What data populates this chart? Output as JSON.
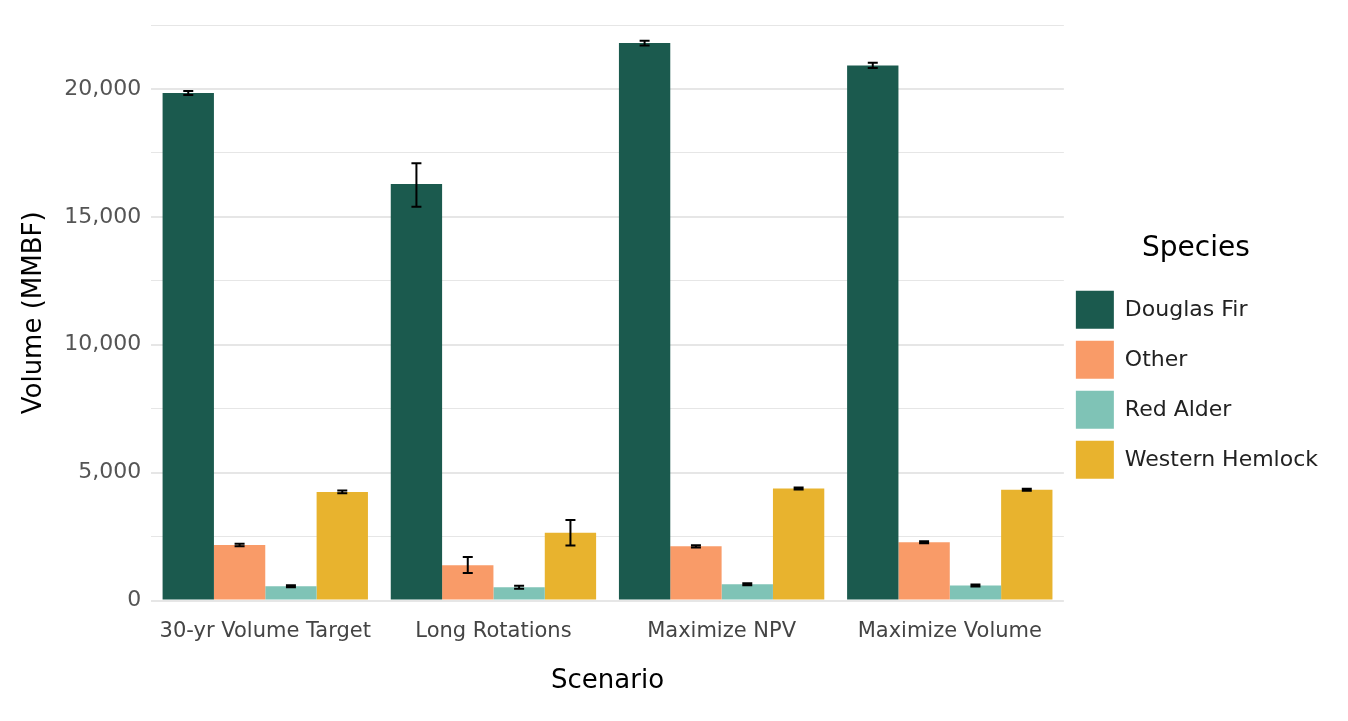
{
  "chart_data": {
    "type": "bar",
    "xlabel": "Scenario",
    "ylabel": "Volume (MMBF)",
    "legend_title": "Species",
    "legend": "right",
    "grid": "y",
    "categories": [
      "30-yr Volume Target",
      "Long Rotations",
      "Maximize NPV",
      "Maximize Volume"
    ],
    "ylim": [
      0,
      22500
    ],
    "yticks": [
      0,
      {
        "value": 2500,
        "label": null
      },
      {
        "value": 5000,
        "label": "5,000"
      },
      {
        "value": 7500,
        "label": null
      },
      {
        "value": 10000,
        "label": "10,000"
      },
      {
        "value": 12500,
        "label": null
      },
      {
        "value": 15000,
        "label": "15,000"
      },
      {
        "value": 17500,
        "label": null
      },
      {
        "value": 20000,
        "label": "20,000"
      },
      {
        "value": 22500,
        "label": null
      }
    ],
    "series": [
      {
        "name": "Douglas Fir",
        "color": "#1b5a4e",
        "values": [
          19840,
          16280,
          21800,
          20920
        ],
        "errors": [
          [
            19760,
            19920
          ],
          [
            15400,
            17100
          ],
          [
            21700,
            21880
          ],
          [
            20820,
            21020
          ]
        ]
      },
      {
        "name": "Other",
        "color": "#f99b68",
        "values": [
          2170,
          1380,
          2120,
          2280
        ],
        "errors": [
          [
            2120,
            2220
          ],
          [
            1080,
            1700
          ],
          [
            2080,
            2160
          ],
          [
            2240,
            2320
          ]
        ]
      },
      {
        "name": "Red Alder",
        "color": "#7fc3b6",
        "values": [
          560,
          520,
          640,
          590
        ],
        "errors": [
          [
            520,
            600
          ],
          [
            460,
            580
          ],
          [
            600,
            680
          ],
          [
            550,
            630
          ]
        ]
      },
      {
        "name": "Western Hemlock",
        "color": "#e8b32e",
        "values": [
          4250,
          2650,
          4380,
          4330
        ],
        "errors": [
          [
            4200,
            4300
          ],
          [
            2150,
            3150
          ],
          [
            4340,
            4420
          ],
          [
            4290,
            4370
          ]
        ]
      }
    ]
  }
}
